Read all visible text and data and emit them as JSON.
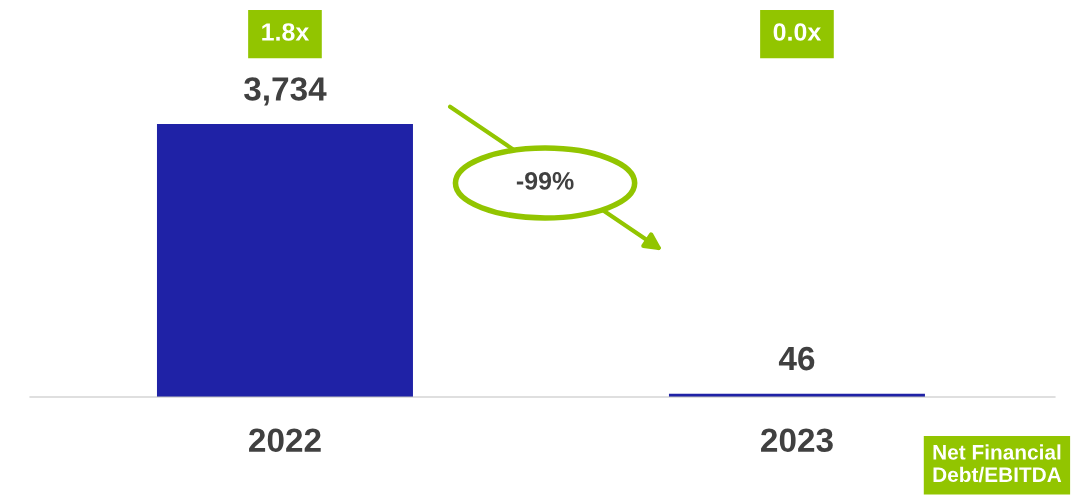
{
  "chart_data": {
    "type": "bar",
    "categories": [
      "2022",
      "2023"
    ],
    "values": [
      3734,
      46
    ],
    "color": "#1f22a6",
    "data_labels": true,
    "value_labels": [
      "3,734",
      "46"
    ],
    "annotations": [
      "1.8x",
      "0.0x",
      "-99%",
      "Net Financial\nDebt/EBITDA"
    ]
  }
}
